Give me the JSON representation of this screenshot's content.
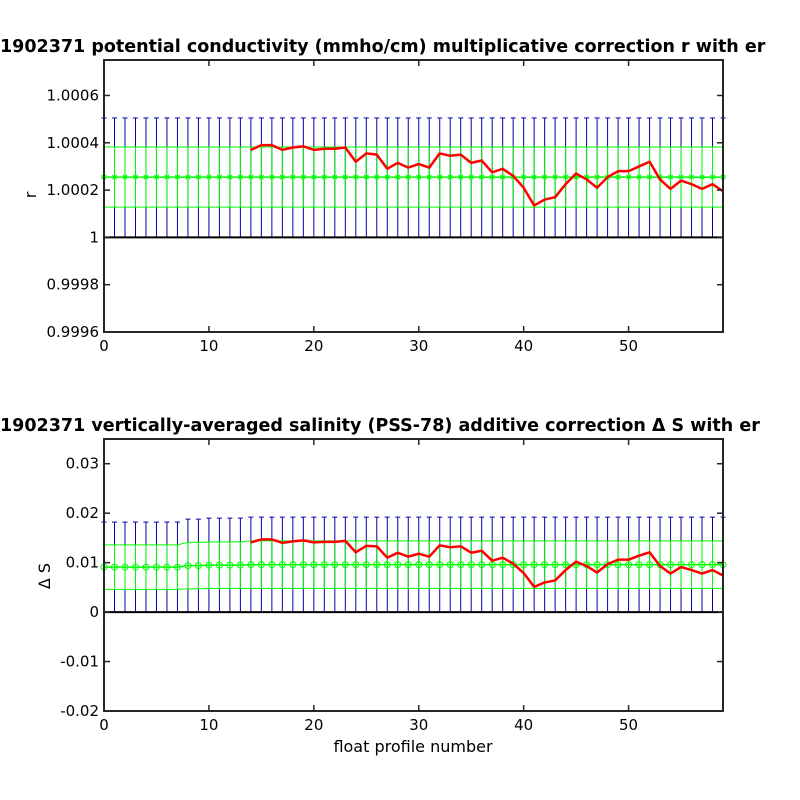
{
  "chart_data": [
    {
      "type": "line",
      "title": "1902371 potential conductivity (mmho/cm) multiplicative correction r with er",
      "xlabel": "",
      "ylabel": "r",
      "xlim": [
        0,
        59
      ],
      "ylim": [
        0.9996,
        1.00075
      ],
      "x_ticks": [
        "0",
        "10",
        "20",
        "30",
        "40",
        "50"
      ],
      "y_ticks": [
        "0.9996",
        "0.9998",
        "1",
        "1.0002",
        "1.0004",
        "1.0006"
      ],
      "y_tick_values": [
        0.9996,
        0.9998,
        1.0,
        1.0002,
        1.0004,
        1.0006
      ],
      "grid": false,
      "reference_line": 1.0,
      "series": [
        {
          "role": "correction",
          "color": "#ff0000",
          "x": [
            14,
            15,
            16,
            17,
            18,
            19,
            20,
            21,
            22,
            23,
            24,
            25,
            26,
            27,
            28,
            29,
            30,
            31,
            32,
            33,
            34,
            35,
            36,
            37,
            38,
            39,
            40,
            41,
            42,
            43,
            44,
            45,
            46,
            47,
            48,
            49,
            50,
            51,
            52,
            53,
            54,
            55,
            56,
            57,
            58,
            59
          ],
          "y": [
            1.00037,
            1.00039,
            1.00039,
            1.00037,
            1.00038,
            1.000385,
            1.00037,
            1.000375,
            1.000375,
            1.00038,
            1.00032,
            1.000355,
            1.00035,
            1.00029,
            1.000315,
            1.000295,
            1.00031,
            1.000295,
            1.000355,
            1.000345,
            1.00035,
            1.000315,
            1.000325,
            1.000275,
            1.00029,
            1.00026,
            1.00021,
            1.000135,
            1.00016,
            1.00017,
            1.000225,
            1.00027,
            1.000245,
            1.00021,
            1.000255,
            1.00028,
            1.00028,
            1.0003,
            1.00032,
            1.000245,
            1.000205,
            1.00024,
            1.000225,
            1.000205,
            1.000225,
            1.000195
          ]
        },
        {
          "role": "mapped value",
          "color": "#00ff00",
          "marker": "asterisk",
          "x_range": [
            0,
            59
          ],
          "y": 1.000255,
          "error_band": [
            1.000128,
            1.000382
          ]
        },
        {
          "role": "error bars",
          "color": "#0000aa",
          "x_range": [
            0,
            59
          ],
          "y_lower": 1.0,
          "y_upper": 1.000505
        }
      ]
    },
    {
      "type": "line",
      "title": "1902371 vertically-averaged salinity (PSS-78) additive correction Δ S with er",
      "xlabel": "float profile number",
      "ylabel": "Δ S",
      "xlim": [
        0,
        59
      ],
      "ylim": [
        -0.02,
        0.035
      ],
      "x_ticks": [
        "0",
        "10",
        "20",
        "30",
        "40",
        "50"
      ],
      "y_ticks": [
        "-0.02",
        "-0.01",
        "0",
        "0.01",
        "0.02",
        "0.03"
      ],
      "y_tick_values": [
        -0.02,
        -0.01,
        0,
        0.01,
        0.02,
        0.03
      ],
      "grid": false,
      "reference_line": 0,
      "series": [
        {
          "role": "correction",
          "color": "#ff0000",
          "x": [
            14,
            15,
            16,
            17,
            18,
            19,
            20,
            21,
            22,
            23,
            24,
            25,
            26,
            27,
            28,
            29,
            30,
            31,
            32,
            33,
            34,
            35,
            36,
            37,
            38,
            39,
            40,
            41,
            42,
            43,
            44,
            45,
            46,
            47,
            48,
            49,
            50,
            51,
            52,
            53,
            54,
            55,
            56,
            57,
            58,
            59
          ],
          "y": [
            0.0141,
            0.0147,
            0.0147,
            0.014,
            0.0143,
            0.0145,
            0.0141,
            0.0142,
            0.0142,
            0.0144,
            0.0121,
            0.0134,
            0.0133,
            0.011,
            0.012,
            0.0112,
            0.0118,
            0.0112,
            0.0135,
            0.0131,
            0.0133,
            0.012,
            0.0124,
            0.0104,
            0.011,
            0.0098,
            0.0079,
            0.0051,
            0.006,
            0.0064,
            0.0085,
            0.0102,
            0.0093,
            0.008,
            0.0097,
            0.0106,
            0.0106,
            0.0114,
            0.0121,
            0.0093,
            0.0078,
            0.0091,
            0.0085,
            0.0078,
            0.0085,
            0.0074
          ]
        },
        {
          "role": "mapped value",
          "color": "#00ff00",
          "marker": "circle",
          "x": [
            0,
            1,
            2,
            3,
            4,
            5,
            6,
            7,
            8,
            9,
            10,
            11,
            12,
            13,
            14,
            15,
            16,
            17,
            18,
            19,
            20,
            21,
            22,
            23,
            24,
            25,
            26,
            27,
            28,
            29,
            30,
            31,
            32,
            33,
            34,
            35,
            36,
            37,
            38,
            39,
            40,
            41,
            42,
            43,
            44,
            45,
            46,
            47,
            48,
            49,
            50,
            51,
            52,
            53,
            54,
            55,
            56,
            57,
            58,
            59
          ],
          "y": [
            0.0091,
            0.0091,
            0.0091,
            0.0091,
            0.0091,
            0.0091,
            0.0091,
            0.0091,
            0.0094,
            0.0094,
            0.0095,
            0.0095,
            0.0095,
            0.0095,
            0.0096,
            0.0096,
            0.0096,
            0.0096,
            0.0096,
            0.0096,
            0.0096,
            0.0096,
            0.0096,
            0.0096,
            0.0096,
            0.0096,
            0.0096,
            0.0096,
            0.0096,
            0.0096,
            0.0096,
            0.0096,
            0.0096,
            0.0096,
            0.0096,
            0.0096,
            0.0096,
            0.0096,
            0.0096,
            0.0096,
            0.0096,
            0.0096,
            0.0096,
            0.0096,
            0.0096,
            0.0096,
            0.0096,
            0.0096,
            0.0096,
            0.0096,
            0.0096,
            0.0096,
            0.0096,
            0.0096,
            0.0096,
            0.0096,
            0.0096,
            0.0096,
            0.0096,
            0.0096
          ],
          "error_half_width": [
            0.0045,
            0.0045,
            0.0045,
            0.0045,
            0.0045,
            0.0045,
            0.0045,
            0.0045,
            0.0047,
            0.0047,
            0.0047,
            0.0047,
            0.0047,
            0.0047,
            0.0048,
            0.0048,
            0.0048,
            0.0048,
            0.0048,
            0.0048,
            0.0048,
            0.0048,
            0.0048,
            0.0048,
            0.0048,
            0.0048,
            0.0048,
            0.0048,
            0.0048,
            0.0048,
            0.0048,
            0.0048,
            0.0048,
            0.0048,
            0.0048,
            0.0048,
            0.0048,
            0.0048,
            0.0048,
            0.0048,
            0.0048,
            0.0048,
            0.0048,
            0.0048,
            0.0048,
            0.0048,
            0.0048,
            0.0048,
            0.0048,
            0.0048,
            0.0048,
            0.0048,
            0.0048,
            0.0048,
            0.0048,
            0.0048,
            0.0048,
            0.0048,
            0.0048,
            0.0048
          ]
        },
        {
          "role": "error bars",
          "color": "#0000aa",
          "x": [
            0,
            1,
            2,
            3,
            4,
            5,
            6,
            7,
            8,
            9,
            10,
            11,
            12,
            13,
            14,
            15,
            16,
            17,
            18,
            19,
            20,
            21,
            22,
            23,
            24,
            25,
            26,
            27,
            28,
            29,
            30,
            31,
            32,
            33,
            34,
            35,
            36,
            37,
            38,
            39,
            40,
            41,
            42,
            43,
            44,
            45,
            46,
            47,
            48,
            49,
            50,
            51,
            52,
            53,
            54,
            55,
            56,
            57,
            58,
            59
          ],
          "y_lower": 0,
          "y_upper": [
            0.0182,
            0.0182,
            0.0182,
            0.0182,
            0.0182,
            0.0182,
            0.0182,
            0.0182,
            0.0188,
            0.0188,
            0.019,
            0.019,
            0.019,
            0.019,
            0.0192,
            0.0192,
            0.0192,
            0.0192,
            0.0192,
            0.0192,
            0.0192,
            0.0192,
            0.0192,
            0.0192,
            0.0192,
            0.0192,
            0.0192,
            0.0192,
            0.0192,
            0.0192,
            0.0192,
            0.0192,
            0.0192,
            0.0192,
            0.0192,
            0.0192,
            0.0192,
            0.0192,
            0.0192,
            0.0192,
            0.0192,
            0.0192,
            0.0192,
            0.0192,
            0.0192,
            0.0192,
            0.0192,
            0.0192,
            0.0192,
            0.0192,
            0.0192,
            0.0192,
            0.0192,
            0.0192,
            0.0192,
            0.0192,
            0.0192,
            0.0192,
            0.0192,
            0.0192
          ]
        }
      ]
    }
  ]
}
